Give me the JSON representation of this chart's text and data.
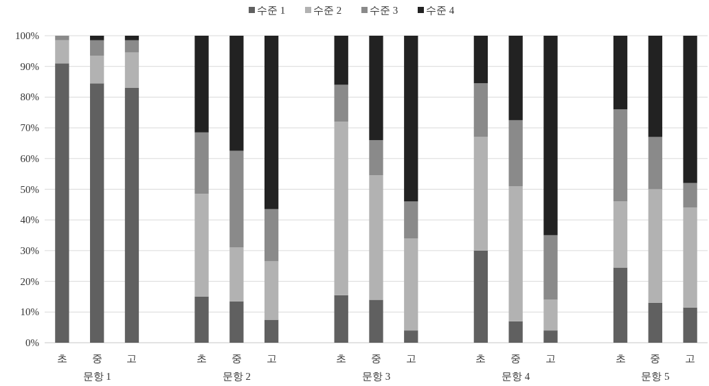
{
  "chart_data": {
    "type": "bar",
    "stacked": true,
    "grid": "y",
    "legend": "top",
    "categories": [
      "초",
      "중",
      "고",
      null,
      "초",
      "중",
      "고",
      null,
      "초",
      "중",
      "고",
      null,
      "초",
      "중",
      "고",
      null,
      "초",
      "중",
      "고"
    ],
    "series": [
      {
        "name": "수준 1",
        "color": "#606060",
        "values": [
          91,
          84.5,
          83,
          null,
          15,
          13.5,
          7.5,
          null,
          15.5,
          14,
          4,
          null,
          30,
          7,
          4,
          null,
          24.5,
          13,
          11.5
        ]
      },
      {
        "name": "수준 2",
        "color": "#b2b2b2",
        "values": [
          7.5,
          9,
          11.5,
          null,
          33.5,
          17.5,
          19,
          null,
          56.5,
          40.5,
          30,
          null,
          37,
          44,
          10,
          null,
          21.5,
          37,
          32.5
        ]
      },
      {
        "name": "수준 3",
        "color": "#8a8a8a",
        "values": [
          1.5,
          5,
          4,
          null,
          20,
          31.5,
          17,
          null,
          12,
          11.5,
          12,
          null,
          17.5,
          21.5,
          21,
          null,
          30,
          17,
          8
        ]
      },
      {
        "name": "수준 4",
        "color": "#222222",
        "values": [
          0,
          1.5,
          1.5,
          null,
          31.5,
          37.5,
          56.5,
          null,
          16,
          34,
          54,
          null,
          15.5,
          27.5,
          65,
          null,
          24,
          33,
          48
        ]
      }
    ],
    "ylim": [
      0,
      100
    ],
    "yticks": [
      {
        "value": 0,
        "label": "0%"
      },
      {
        "value": 10,
        "label": "10%"
      },
      {
        "value": 20,
        "label": "20%"
      },
      {
        "value": 30,
        "label": "30%"
      },
      {
        "value": 40,
        "label": "40%"
      },
      {
        "value": 50,
        "label": "50%"
      },
      {
        "value": 60,
        "label": "60%"
      },
      {
        "value": 70,
        "label": "70%"
      },
      {
        "value": 80,
        "label": "80%"
      },
      {
        "value": 90,
        "label": "90%"
      },
      {
        "value": 100,
        "label": "100%"
      }
    ],
    "annotations": [
      "문항 1",
      "문항 2",
      "문항 3",
      "문항 4",
      "문항 5"
    ]
  }
}
